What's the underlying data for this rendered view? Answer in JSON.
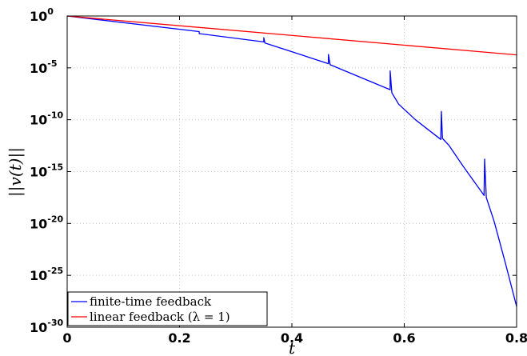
{
  "chart_data": {
    "type": "line",
    "title": "",
    "xlabel": "t",
    "ylabel": "||v(t)||",
    "xlim": [
      0,
      0.8
    ],
    "ylim_log10": [
      -30,
      0
    ],
    "yscale": "log",
    "grid": true,
    "legend_position": "bottom-left",
    "x_ticks": [
      "0",
      "0.2",
      "0.4",
      "0.6",
      "0.8"
    ],
    "x_tick_values": [
      0,
      0.2,
      0.4,
      0.6,
      0.8
    ],
    "y_tick_exponents": [
      "0",
      "-5",
      "-10",
      "-15",
      "-20",
      "-25",
      "-30"
    ],
    "y_tick_values_log10": [
      0,
      -5,
      -10,
      -15,
      -20,
      -25,
      -30
    ],
    "y_tick_base": "10",
    "series": [
      {
        "name": "finite-time feedback",
        "color": "#0000ff",
        "x": [
          0,
          0.235,
          0.235,
          0.35,
          0.35,
          0.352,
          0.465,
          0.465,
          0.468,
          0.575,
          0.575,
          0.578,
          0.59,
          0.62,
          0.665,
          0.666,
          0.668,
          0.68,
          0.705,
          0.742,
          0.743,
          0.746,
          0.76,
          0.78,
          0.8
        ],
        "y_log10": [
          0,
          -1.5,
          -1.7,
          -2.5,
          -2.1,
          -2.6,
          -4.6,
          -3.7,
          -4.7,
          -7.1,
          -5.3,
          -7.4,
          -8.5,
          -10.0,
          -11.9,
          -9.2,
          -11.8,
          -12.5,
          -14.5,
          -17.3,
          -13.8,
          -17.5,
          -19.8,
          -23.8,
          -28.0
        ]
      },
      {
        "name": "linear feedback (λ = 1)",
        "color": "#ff0000",
        "x": [
          0,
          0.8
        ],
        "y_log10": [
          0,
          -3.75
        ]
      }
    ]
  }
}
